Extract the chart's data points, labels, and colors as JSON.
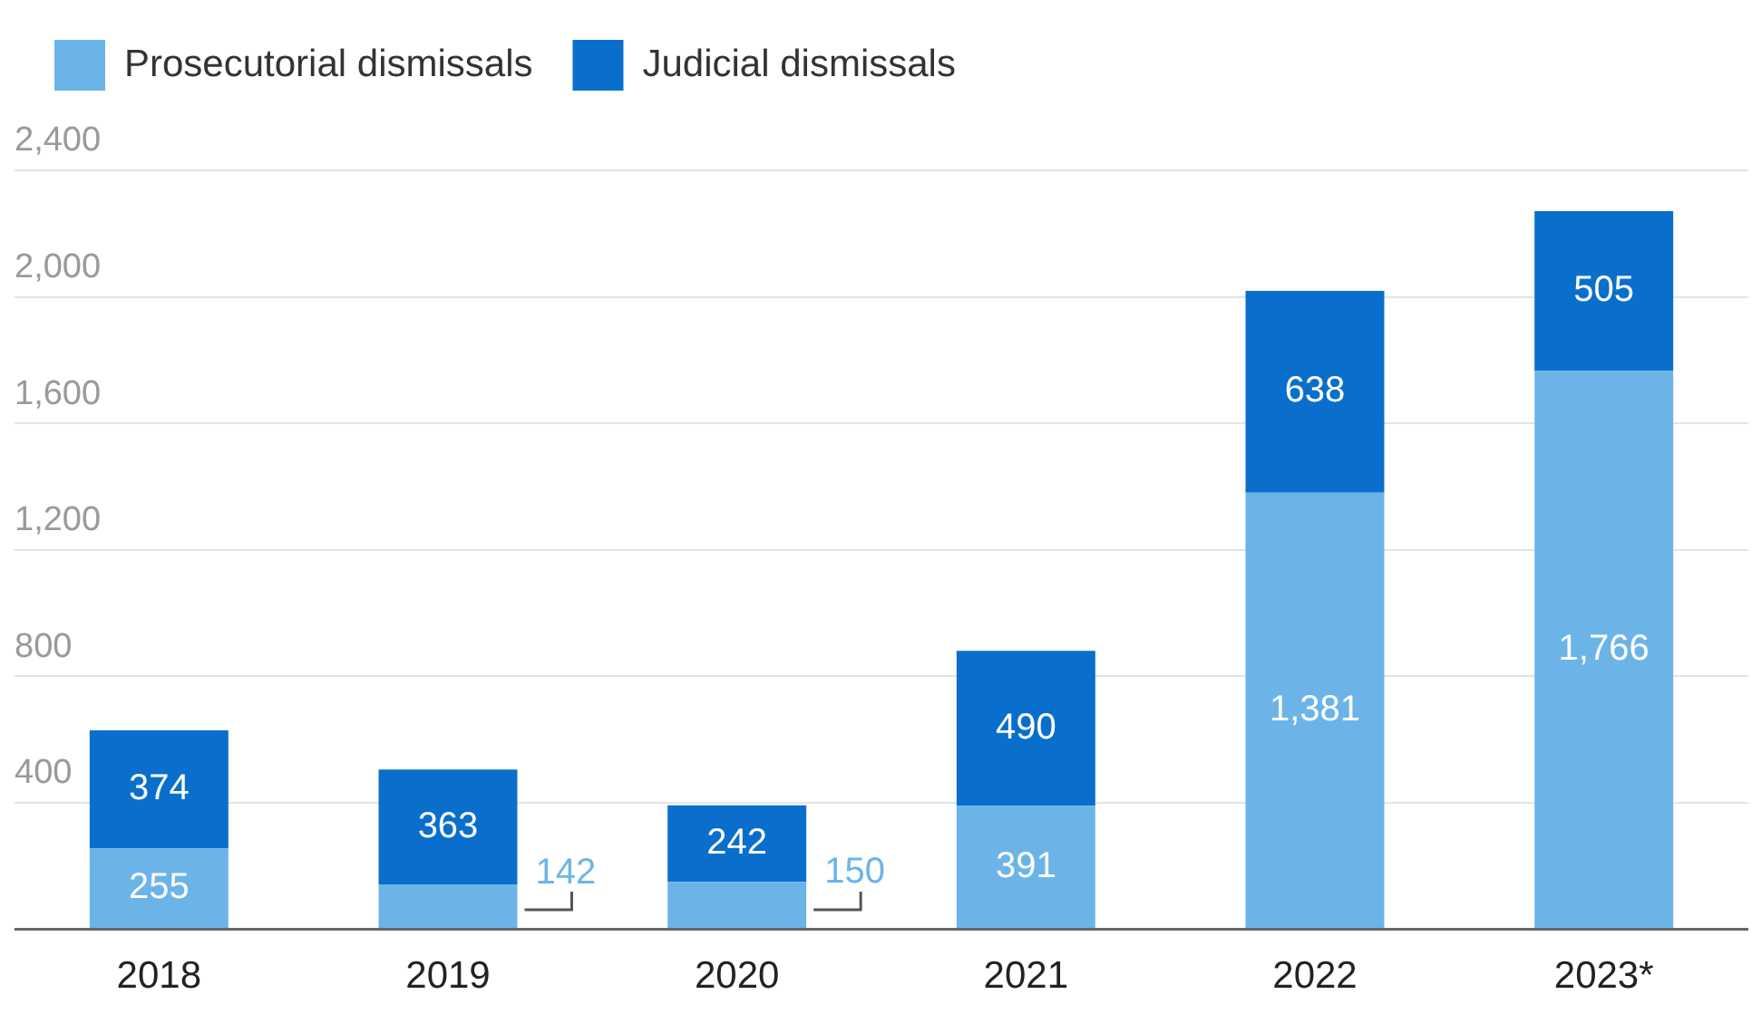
{
  "chart_data": {
    "type": "bar",
    "stacked": true,
    "categories": [
      "2018",
      "2019",
      "2020",
      "2021",
      "2022",
      "2023*"
    ],
    "series": [
      {
        "name": "Prosecutorial dismissals",
        "color": "#6cb4e8",
        "values": [
          255,
          142,
          150,
          391,
          1381,
          1766
        ],
        "value_labels": [
          "255",
          "142",
          "150",
          "391",
          "1,381",
          "1,766"
        ]
      },
      {
        "name": "Judicial dismissals",
        "color": "#0a6fcc",
        "values": [
          374,
          363,
          242,
          490,
          638,
          505
        ],
        "value_labels": [
          "374",
          "363",
          "242",
          "490",
          "638",
          "505"
        ]
      }
    ],
    "ylim": [
      0,
      2400
    ],
    "yticks": [
      {
        "value": 0,
        "label": null
      },
      400,
      800,
      {
        "value": 1200,
        "label": "1,200"
      },
      {
        "value": 1600,
        "label": "1,600"
      },
      {
        "value": 2000,
        "label": "2,000"
      },
      {
        "value": 2400,
        "label": "2,400"
      }
    ],
    "grid": "y",
    "legend": "top left"
  }
}
